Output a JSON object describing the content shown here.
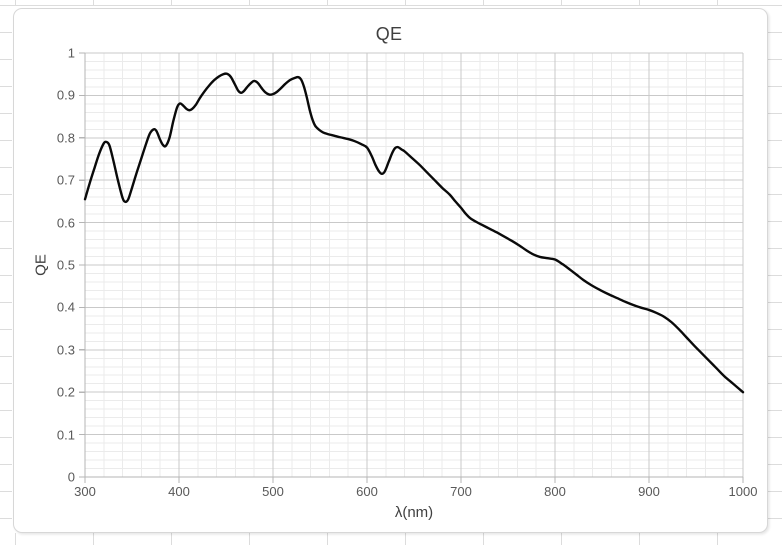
{
  "colors": {
    "curve": "#0a0a0a",
    "grid_major": "#c9c9c9",
    "grid_minor": "#ebebeb",
    "axis_line": "#b5b5b5",
    "tick_text": "#595959",
    "title_text": "#404040",
    "chart_border": "#d7d7d7",
    "sheet_line": "#dcdcdc"
  },
  "chart_data": {
    "type": "line",
    "title": "QE",
    "xlabel": "λ(nm)",
    "ylabel": "QE",
    "xlim": [
      300,
      1000
    ],
    "ylim": [
      0,
      1
    ],
    "x_tick_interval": 100,
    "y_tick_interval": 0.1,
    "x_minor_interval": 20,
    "y_minor_interval": 0.02,
    "grid": "major and minor gridlines on both axes",
    "legend": "none",
    "x_ticks": [
      "300",
      "400",
      "500",
      "600",
      "700",
      "800",
      "900",
      "1000"
    ],
    "y_ticks": [
      "0",
      "0.1",
      "0.2",
      "0.3",
      "0.4",
      "0.5",
      "0.6",
      "0.7",
      "0.8",
      "0.9",
      "1"
    ],
    "series": [
      {
        "name": "QE",
        "color": "#0a0a0a",
        "stroke_width": 2.4,
        "points": [
          [
            300,
            0.655
          ],
          [
            305,
            0.693
          ],
          [
            310,
            0.728
          ],
          [
            315,
            0.762
          ],
          [
            320,
            0.787
          ],
          [
            323,
            0.79
          ],
          [
            326,
            0.782
          ],
          [
            330,
            0.748
          ],
          [
            335,
            0.7
          ],
          [
            340,
            0.658
          ],
          [
            343,
            0.649
          ],
          [
            346,
            0.655
          ],
          [
            350,
            0.682
          ],
          [
            355,
            0.718
          ],
          [
            360,
            0.752
          ],
          [
            365,
            0.786
          ],
          [
            369,
            0.81
          ],
          [
            373,
            0.82
          ],
          [
            376,
            0.816
          ],
          [
            380,
            0.795
          ],
          [
            383,
            0.783
          ],
          [
            386,
            0.781
          ],
          [
            390,
            0.801
          ],
          [
            394,
            0.84
          ],
          [
            398,
            0.872
          ],
          [
            401,
            0.881
          ],
          [
            404,
            0.877
          ],
          [
            408,
            0.868
          ],
          [
            411,
            0.865
          ],
          [
            414,
            0.868
          ],
          [
            418,
            0.878
          ],
          [
            422,
            0.893
          ],
          [
            427,
            0.909
          ],
          [
            432,
            0.923
          ],
          [
            437,
            0.935
          ],
          [
            442,
            0.944
          ],
          [
            447,
            0.95
          ],
          [
            451,
            0.951
          ],
          [
            455,
            0.944
          ],
          [
            459,
            0.928
          ],
          [
            463,
            0.911
          ],
          [
            466,
            0.906
          ],
          [
            469,
            0.91
          ],
          [
            473,
            0.921
          ],
          [
            477,
            0.93
          ],
          [
            480,
            0.934
          ],
          [
            484,
            0.929
          ],
          [
            488,
            0.917
          ],
          [
            492,
            0.907
          ],
          [
            496,
            0.902
          ],
          [
            500,
            0.903
          ],
          [
            504,
            0.908
          ],
          [
            508,
            0.916
          ],
          [
            513,
            0.927
          ],
          [
            518,
            0.936
          ],
          [
            523,
            0.941
          ],
          [
            527,
            0.943
          ],
          [
            530,
            0.937
          ],
          [
            533,
            0.92
          ],
          [
            536,
            0.895
          ],
          [
            539,
            0.866
          ],
          [
            542,
            0.843
          ],
          [
            545,
            0.828
          ],
          [
            549,
            0.819
          ],
          [
            553,
            0.813
          ],
          [
            558,
            0.809
          ],
          [
            565,
            0.805
          ],
          [
            572,
            0.801
          ],
          [
            580,
            0.797
          ],
          [
            587,
            0.792
          ],
          [
            594,
            0.785
          ],
          [
            600,
            0.777
          ],
          [
            605,
            0.757
          ],
          [
            609,
            0.736
          ],
          [
            613,
            0.72
          ],
          [
            616,
            0.715
          ],
          [
            619,
            0.721
          ],
          [
            623,
            0.743
          ],
          [
            627,
            0.765
          ],
          [
            630,
            0.776
          ],
          [
            633,
            0.778
          ],
          [
            637,
            0.772
          ],
          [
            640,
            0.768
          ],
          [
            648,
            0.752
          ],
          [
            656,
            0.736
          ],
          [
            664,
            0.718
          ],
          [
            672,
            0.7
          ],
          [
            680,
            0.682
          ],
          [
            688,
            0.666
          ],
          [
            694,
            0.65
          ],
          [
            700,
            0.635
          ],
          [
            705,
            0.621
          ],
          [
            710,
            0.61
          ],
          [
            716,
            0.602
          ],
          [
            722,
            0.595
          ],
          [
            730,
            0.586
          ],
          [
            738,
            0.577
          ],
          [
            746,
            0.567
          ],
          [
            754,
            0.557
          ],
          [
            762,
            0.546
          ],
          [
            770,
            0.534
          ],
          [
            777,
            0.525
          ],
          [
            784,
            0.519
          ],
          [
            792,
            0.516
          ],
          [
            800,
            0.513
          ],
          [
            808,
            0.502
          ],
          [
            816,
            0.489
          ],
          [
            823,
            0.477
          ],
          [
            830,
            0.465
          ],
          [
            839,
            0.452
          ],
          [
            848,
            0.441
          ],
          [
            857,
            0.431
          ],
          [
            866,
            0.422
          ],
          [
            875,
            0.413
          ],
          [
            884,
            0.405
          ],
          [
            892,
            0.399
          ],
          [
            900,
            0.394
          ],
          [
            908,
            0.387
          ],
          [
            916,
            0.378
          ],
          [
            924,
            0.365
          ],
          [
            932,
            0.348
          ],
          [
            940,
            0.329
          ],
          [
            948,
            0.31
          ],
          [
            956,
            0.292
          ],
          [
            964,
            0.274
          ],
          [
            972,
            0.256
          ],
          [
            980,
            0.238
          ],
          [
            990,
            0.219
          ],
          [
            1000,
            0.2
          ]
        ]
      }
    ]
  }
}
